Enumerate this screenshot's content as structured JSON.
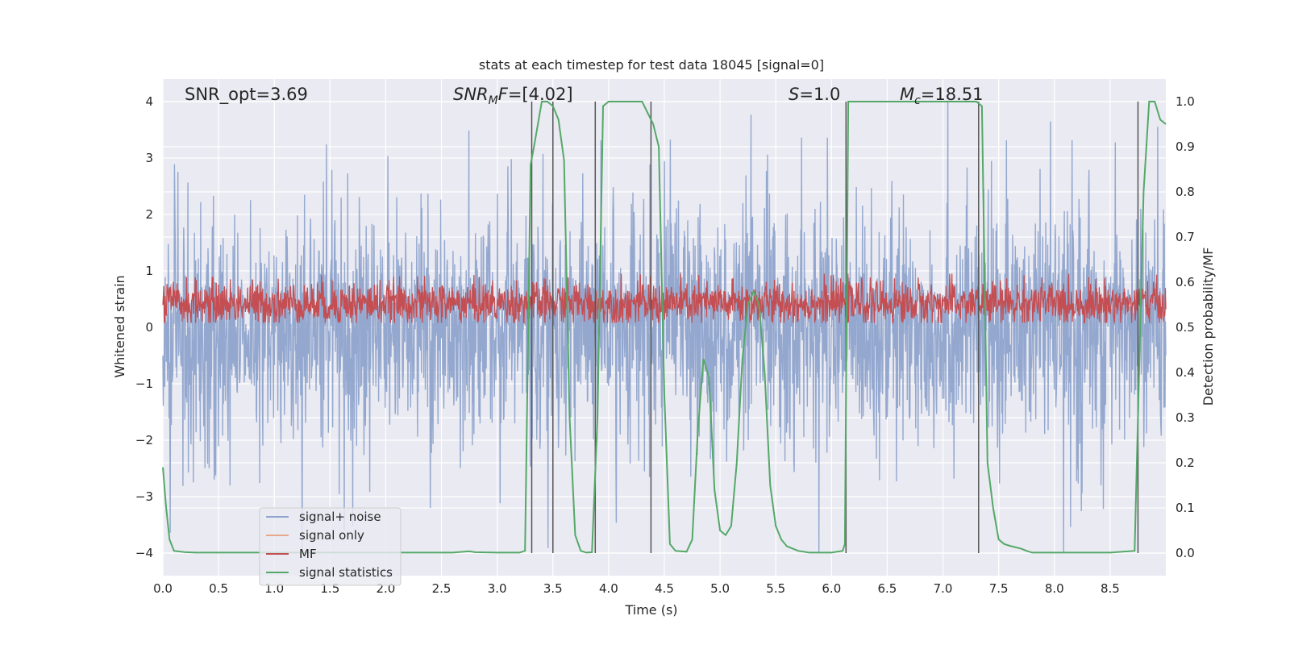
{
  "chart_data": {
    "type": "line",
    "title": "stats at each timestep for test data 18045 [signal=0]",
    "xlabel": "Time (s)",
    "ylabel_left": "Whitened strain",
    "ylabel_right": "Detection probability/MF",
    "xlim": [
      0,
      9.0
    ],
    "ylim_left": [
      -4.4,
      4.4
    ],
    "ylim_right": [
      -0.05,
      1.05
    ],
    "x_ticks": [
      "0.0",
      "0.5",
      "1.0",
      "1.5",
      "2.0",
      "2.5",
      "3.0",
      "3.5",
      "4.0",
      "4.5",
      "5.0",
      "5.5",
      "6.0",
      "6.5",
      "7.0",
      "7.5",
      "8.0",
      "8.5"
    ],
    "y_left_ticks": [
      "4",
      "3",
      "2",
      "1",
      "0",
      "−1",
      "−2",
      "−3",
      "−4"
    ],
    "y_right_ticks": [
      "1.0",
      "0.9",
      "0.8",
      "0.7",
      "0.6",
      "0.5",
      "0.4",
      "0.3",
      "0.2",
      "0.1",
      "0.0"
    ],
    "grid": true,
    "legend_position": "lower-left",
    "annotations": {
      "snr_opt": "SNR_opt=3.69",
      "snr_mf_italic": "SNR",
      "snr_mf_sub": "M",
      "snr_mf_italic2": "F",
      "snr_mf_rest": "=[4.02]",
      "s_italic": "S",
      "s_rest": "=1.0",
      "mc_italic": "M",
      "mc_sub": "c",
      "mc_rest": "=18.51"
    },
    "vertical_lines_x": [
      3.31,
      3.5,
      3.88,
      4.38,
      6.13,
      7.32,
      8.75
    ],
    "series": [
      {
        "name": "signal+ noise",
        "color": "#8fa4cc",
        "axis": "left",
        "noise_envelope": {
          "typical_abs": 1.6,
          "max_abs": 4.0,
          "x_range": [
            0,
            9.0
          ]
        }
      },
      {
        "name": "signal only",
        "color": "#e8a88a",
        "axis": "left",
        "values": []
      },
      {
        "name": "MF",
        "color": "#c44e52",
        "axis": "left",
        "band": {
          "low": 0.1,
          "high": 0.75,
          "x_range": [
            0,
            9.0
          ]
        }
      },
      {
        "name": "signal statistics",
        "color": "#55a868",
        "axis": "right",
        "x": [
          0.0,
          0.03,
          0.06,
          0.1,
          0.2,
          0.3,
          0.5,
          1.0,
          1.5,
          2.0,
          2.5,
          2.6,
          2.75,
          2.8,
          3.0,
          3.2,
          3.25,
          3.3,
          3.33,
          3.4,
          3.45,
          3.5,
          3.55,
          3.6,
          3.65,
          3.7,
          3.75,
          3.8,
          3.85,
          3.9,
          3.95,
          4.0,
          4.1,
          4.2,
          4.3,
          4.4,
          4.45,
          4.5,
          4.55,
          4.6,
          4.7,
          4.75,
          4.8,
          4.85,
          4.9,
          4.95,
          5.0,
          5.05,
          5.1,
          5.15,
          5.2,
          5.25,
          5.3,
          5.35,
          5.4,
          5.45,
          5.5,
          5.55,
          5.6,
          5.7,
          5.8,
          5.9,
          6.0,
          6.1,
          6.12,
          6.15,
          6.2,
          6.5,
          7.0,
          7.3,
          7.35,
          7.4,
          7.45,
          7.5,
          7.55,
          7.6,
          7.7,
          7.75,
          7.8,
          7.9,
          8.0,
          8.5,
          8.72,
          8.75,
          8.8,
          8.85,
          8.9,
          8.95,
          9.0
        ],
        "values": [
          0.19,
          0.1,
          0.03,
          0.005,
          0.002,
          0.001,
          0.001,
          0.001,
          0.001,
          0.001,
          0.001,
          0.001,
          0.004,
          0.002,
          0.001,
          0.001,
          0.005,
          0.86,
          0.9,
          1.0,
          1.0,
          0.99,
          0.96,
          0.87,
          0.3,
          0.04,
          0.005,
          0.001,
          0.002,
          0.3,
          0.99,
          1.0,
          1.0,
          1.0,
          1.0,
          0.95,
          0.9,
          0.35,
          0.02,
          0.005,
          0.003,
          0.03,
          0.27,
          0.43,
          0.39,
          0.14,
          0.05,
          0.04,
          0.06,
          0.2,
          0.43,
          0.55,
          0.58,
          0.55,
          0.4,
          0.15,
          0.06,
          0.03,
          0.015,
          0.005,
          0.001,
          0.001,
          0.001,
          0.005,
          0.02,
          1.0,
          1.0,
          1.0,
          1.0,
          1.0,
          0.99,
          0.2,
          0.1,
          0.03,
          0.02,
          0.016,
          0.01,
          0.005,
          0.001,
          0.001,
          0.001,
          0.001,
          0.005,
          0.3,
          0.8,
          1.0,
          1.0,
          0.96,
          0.95
        ]
      }
    ]
  }
}
